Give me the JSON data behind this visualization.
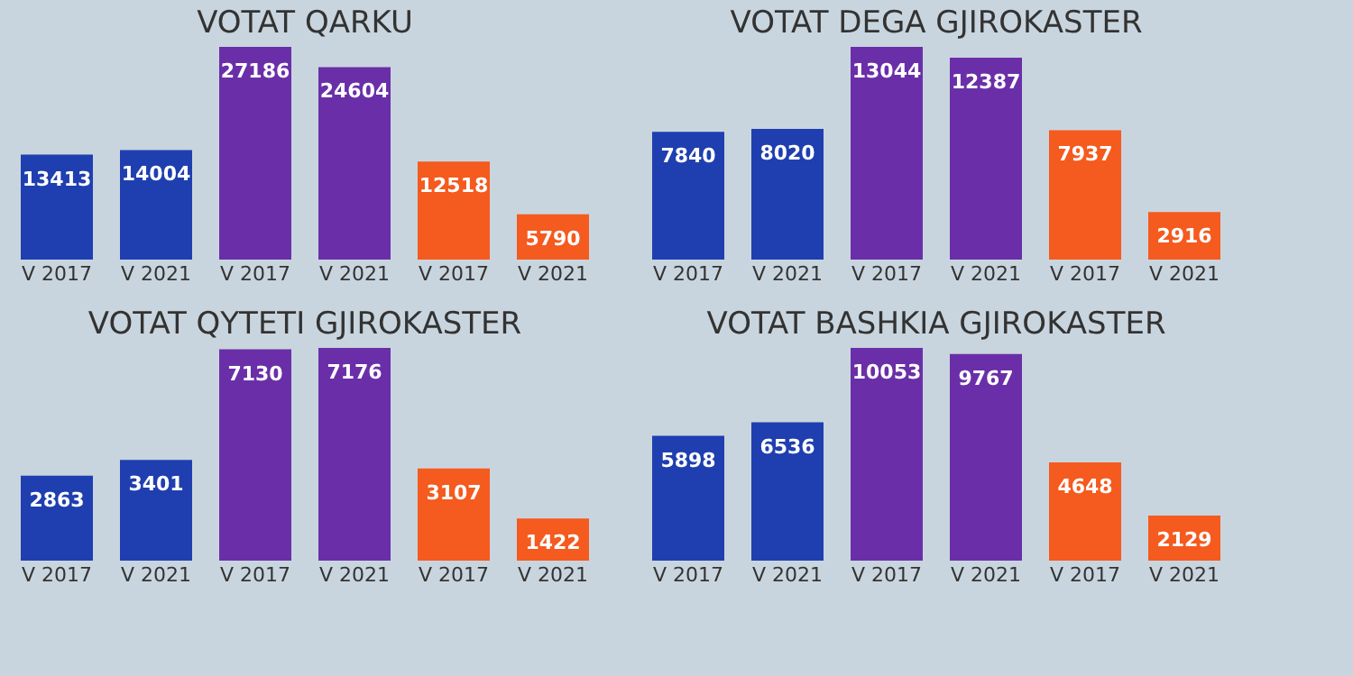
{
  "chart_data": [
    {
      "type": "bar",
      "title": "VOTAT QARKU",
      "categories": [
        "V 2017",
        "V 2021",
        "V 2017",
        "V 2021",
        "V 2017",
        "V 2021"
      ],
      "values": [
        13413,
        14004,
        27186,
        24604,
        12518,
        5790
      ],
      "colors": [
        "#1f3fb0",
        "#1f3fb0",
        "#6a2fa8",
        "#6a2fa8",
        "#f55a1e",
        "#f55a1e"
      ],
      "data_labels": true
    },
    {
      "type": "bar",
      "title": "VOTAT DEGA GJIROKASTER",
      "categories": [
        "V 2017",
        "V 2021",
        "V 2017",
        "V 2021",
        "V 2017",
        "V 2021"
      ],
      "values": [
        7840,
        8020,
        13044,
        12387,
        7937,
        2916
      ],
      "colors": [
        "#1f3fb0",
        "#1f3fb0",
        "#6a2fa8",
        "#6a2fa8",
        "#f55a1e",
        "#f55a1e"
      ],
      "data_labels": true
    },
    {
      "type": "bar",
      "title": "VOTAT QYTETI GJIROKASTER",
      "categories": [
        "V 2017",
        "V 2021",
        "V 2017",
        "V 2021",
        "V 2017",
        "V 2021"
      ],
      "values": [
        2863,
        3401,
        7130,
        7176,
        3107,
        1422
      ],
      "colors": [
        "#1f3fb0",
        "#1f3fb0",
        "#6a2fa8",
        "#6a2fa8",
        "#f55a1e",
        "#f55a1e"
      ],
      "data_labels": true
    },
    {
      "type": "bar",
      "title": "VOTAT BASHKIA GJIROKASTER",
      "categories": [
        "V 2017",
        "V 2021",
        "V 2017",
        "V 2021",
        "V 2017",
        "V 2021"
      ],
      "values": [
        5898,
        6536,
        10053,
        9767,
        4648,
        2129
      ],
      "colors": [
        "#1f3fb0",
        "#1f3fb0",
        "#6a2fa8",
        "#6a2fa8",
        "#f55a1e",
        "#f55a1e"
      ],
      "data_labels": true
    }
  ]
}
